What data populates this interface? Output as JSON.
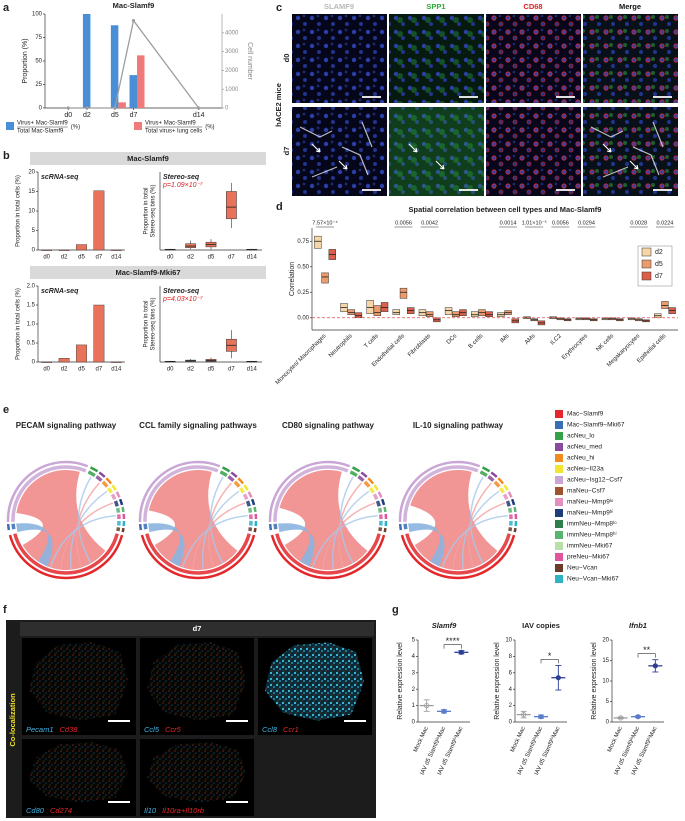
{
  "panel_labels": [
    "a",
    "b",
    "c",
    "d",
    "e",
    "f",
    "g"
  ],
  "panel_b": {
    "headers": [
      "Mac-Slamf9",
      "Mac-Slamf9-Mki67"
    ]
  },
  "panel_c": {
    "columns": [
      "SLAMF9",
      "SPP1",
      "CD68",
      "Merge"
    ],
    "column_colors": [
      "#b8b8b8",
      "#2fa83a",
      "#e02020",
      "#111111"
    ],
    "rows": [
      "d0",
      "d7"
    ],
    "group": "hACE2 mice"
  },
  "panel_e": {
    "titles": [
      "PECAM  signaling pathway",
      "CCL family signaling pathways",
      "CD80 signaling pathway",
      "IL-10 signaling pathway"
    ],
    "legend": [
      {
        "name": "Mac−Slamf9",
        "color": "#e3272a"
      },
      {
        "name": "Mac−Slamf9−Mki67",
        "color": "#3a6db5"
      },
      {
        "name": "acNeu_lo",
        "color": "#35a047"
      },
      {
        "name": "acNeu_med",
        "color": "#8a4a9e"
      },
      {
        "name": "acNeu_hi",
        "color": "#f28a1e"
      },
      {
        "name": "acNeu−Il23a",
        "color": "#f3e630"
      },
      {
        "name": "acNeu−Isg12−Csf7",
        "color": "#c9a6d6"
      },
      {
        "name": "maNeu−Csf7",
        "color": "#a0522d"
      },
      {
        "name": "maNeu−Mmp9ˡᵒ",
        "color": "#e48fc0"
      },
      {
        "name": "maNeu−Mmp9ʰⁱ",
        "color": "#1f3d7a"
      },
      {
        "name": "immNeu−Mmp8ˡᵒ",
        "color": "#2e7d4f"
      },
      {
        "name": "immNeu−Mmp8ʰⁱ",
        "color": "#5ab36e"
      },
      {
        "name": "immNeu−Mki67",
        "color": "#b7dfa8"
      },
      {
        "name": "preNeu−Mki67",
        "color": "#e0559b"
      },
      {
        "name": "Neu−Vcan",
        "color": "#6a3d2a"
      },
      {
        "name": "Neu−Vcan−Mki67",
        "color": "#2bb3c8"
      }
    ]
  },
  "panel_f": {
    "header": "d7",
    "side_label": "Co-localization",
    "gene_colors": [
      "#42b4e6",
      "#e8262a"
    ],
    "images": [
      {
        "genes": [
          "Pecam1",
          "Cd38"
        ]
      },
      {
        "genes": [
          "Ccl5",
          "Ccr5"
        ]
      },
      {
        "genes": [
          "Ccl8",
          "Ccr1"
        ]
      },
      {
        "genes": [
          "Cd80",
          "Cd274"
        ]
      },
      {
        "genes": [
          "Il10",
          "Il10ra+Il10rb"
        ]
      }
    ]
  },
  "chart_data": [
    {
      "type": "bar",
      "title": "Mac-Slamf9",
      "x": [
        0,
        2,
        5,
        7,
        14
      ],
      "xlim": [
        -2.5,
        16.5
      ],
      "xticks": [
        {
          "value": 0,
          "label": "d0"
        },
        {
          "value": 2,
          "label": "d2"
        },
        {
          "value": 5,
          "label": "d5"
        },
        {
          "value": 7,
          "label": "d7"
        },
        {
          "value": 14,
          "label": "d14"
        }
      ],
      "ylabel": "Proportion (%)",
      "ylim": [
        0,
        100
      ],
      "yticks": [
        0,
        25,
        50,
        75,
        100
      ],
      "y2label": "Cell number",
      "y2lim": [
        0,
        5000
      ],
      "y2ticks": [
        0,
        1000,
        2000,
        3000,
        4000
      ],
      "series": [
        {
          "name": "Virus+ Mac-Slamf9",
          "denominator": "Total Mac-Slamf9",
          "unit": "(%)",
          "color": "#4a8fd6",
          "values": [
            0,
            100,
            88,
            35,
            0
          ]
        },
        {
          "name": "Virus+ Mac-Slamf9",
          "denominator": "Total virus+ lung cells",
          "unit": "(%)",
          "color": "#f07a7a",
          "values": [
            0,
            0,
            6,
            56,
            0
          ]
        },
        {
          "type": "line",
          "axis": "y2",
          "color": "#9e9e9e",
          "values": [
            0,
            0,
            0,
            4650,
            0
          ]
        }
      ]
    },
    {
      "type": "bar",
      "title": "scRNA-seq",
      "categories": [
        "d0",
        "d2",
        "d5",
        "d7",
        "d14"
      ],
      "values": [
        0,
        0,
        1.4,
        15.2,
        0
      ],
      "color": "#e8735a",
      "ylabel": "Proportion in total cells (%)",
      "ylim": [
        0,
        20
      ],
      "yticks": [
        0,
        5,
        10,
        15,
        20
      ]
    },
    {
      "type": "box",
      "title": "Stereo-seq",
      "annotation": "p=1.09×10⁻⁷",
      "categories": [
        "d0",
        "d2",
        "d5",
        "d7",
        "d14"
      ],
      "color": "#e8735a",
      "ylabel": [
        "Proportion in total",
        "Stereo-seq bins (%)"
      ],
      "ylim": [
        0,
        1
      ],
      "q1": [
        0.002,
        0.03,
        0.04,
        0.4,
        0.003
      ],
      "median": [
        0.005,
        0.05,
        0.07,
        0.55,
        0.006
      ],
      "q3": [
        0.01,
        0.08,
        0.1,
        0.75,
        0.01
      ],
      "whisker_low": [
        0,
        0.01,
        0.01,
        0.28,
        0
      ],
      "whisker_high": [
        0.015,
        0.12,
        0.14,
        0.86,
        0.015
      ]
    },
    {
      "type": "bar",
      "title": "scRNA-seq",
      "categories": [
        "d0",
        "d2",
        "d5",
        "d7",
        "d14"
      ],
      "values": [
        0,
        0.1,
        0.45,
        1.5,
        0
      ],
      "color": "#e8735a",
      "ylabel": "Proportion in total cells (%)",
      "ylim": [
        0,
        2
      ],
      "yticks": [
        0,
        0.5,
        {
          "value": 1,
          "label": "1.0"
        },
        1.5,
        {
          "value": 2,
          "label": "2.0"
        }
      ]
    },
    {
      "type": "box",
      "title": "Stereo-seq",
      "annotation": "p=4.03×10⁻⁷",
      "categories": [
        "d0",
        "d2",
        "d5",
        "d7",
        "d14"
      ],
      "color": "#e8735a",
      "ylabel": [
        "Proportion in total",
        "Stereo-seq bins (%)"
      ],
      "ylim": [
        0,
        1
      ],
      "q1": [
        0.002,
        0.01,
        0.01,
        0.14,
        0.002
      ],
      "median": [
        0.005,
        0.015,
        0.02,
        0.22,
        0.005
      ],
      "q3": [
        0.01,
        0.025,
        0.035,
        0.3,
        0.01
      ],
      "whisker_low": [
        0,
        0,
        0,
        0.05,
        0
      ],
      "whisker_high": [
        0.015,
        0.04,
        0.06,
        0.42,
        0.015
      ]
    },
    {
      "type": "box",
      "title": "Spatial correlation between cell types and Mac-Slamf9",
      "ylabel": "Correlation",
      "categories": [
        "Monocytes/ Macrophages",
        "Neutrophils",
        "T cells",
        "Endothelial cells",
        "Fibroblasts",
        "DCs",
        "B cells",
        "IMs",
        "AMs",
        "ILC2",
        "Erythrocytes",
        "NK cells",
        "Megakaryocytes",
        "Epithelial cells"
      ],
      "pvalues": [
        "7.57×10⁻⁴",
        null,
        null,
        "0.0056",
        "0.0042",
        null,
        null,
        "0.0014",
        "1.01×10⁻⁵",
        "0.0056",
        "0.0294",
        null,
        "0.0028",
        "0.0224"
      ],
      "ylim": [
        -0.12,
        0.88
      ],
      "yticks": [
        {
          "value": 0,
          "label": "0.00"
        },
        0.25,
        {
          "value": 0.5,
          "label": "0.50"
        },
        0.75
      ],
      "series": [
        {
          "name": "d2",
          "color": "#f6d6a8",
          "q1": [
            0.68,
            0.06,
            0.04,
            0.03,
            0.02,
            0.03,
            0.01,
            0.01,
            -0.01,
            -0.01,
            -0.02,
            -0.02,
            -0.02,
            0.0
          ],
          "median": [
            0.75,
            0.1,
            0.1,
            0.05,
            0.05,
            0.07,
            0.03,
            0.03,
            0.0,
            0.0,
            -0.01,
            -0.01,
            -0.01,
            0.02
          ],
          "q3": [
            0.8,
            0.14,
            0.17,
            0.08,
            0.08,
            0.1,
            0.06,
            0.05,
            0.01,
            0.01,
            0.0,
            0.0,
            0.0,
            0.04
          ]
        },
        {
          "name": "d5",
          "color": "#ec9c6c",
          "q1": [
            0.34,
            0.03,
            0.02,
            0.19,
            0.01,
            0.01,
            0.02,
            0.03,
            -0.03,
            -0.02,
            -0.02,
            -0.02,
            -0.03,
            0.09
          ],
          "median": [
            0.4,
            0.05,
            0.05,
            0.25,
            0.03,
            0.03,
            0.05,
            0.05,
            -0.02,
            -0.01,
            -0.01,
            -0.01,
            -0.02,
            0.12
          ],
          "q3": [
            0.44,
            0.08,
            0.12,
            0.29,
            0.06,
            0.06,
            0.08,
            0.07,
            -0.01,
            0.0,
            0.0,
            0.0,
            -0.01,
            0.16
          ]
        },
        {
          "name": "d7",
          "color": "#dc5f4b",
          "q1": [
            0.57,
            0.0,
            0.06,
            0.04,
            -0.04,
            0.02,
            0.01,
            -0.05,
            -0.07,
            -0.03,
            -0.03,
            -0.03,
            -0.04,
            0.04
          ],
          "median": [
            0.62,
            0.02,
            0.1,
            0.07,
            -0.02,
            0.05,
            0.03,
            -0.03,
            -0.05,
            -0.02,
            -0.02,
            -0.02,
            -0.03,
            0.07
          ],
          "q3": [
            0.67,
            0.05,
            0.15,
            0.1,
            0.0,
            0.08,
            0.06,
            -0.01,
            -0.03,
            -0.01,
            -0.01,
            -0.01,
            -0.02,
            0.1
          ]
        }
      ]
    },
    {
      "type": "dot",
      "title": "Slamf9",
      "title_italic": true,
      "ylabel": "Relative expression level",
      "categories": [
        "Mock Mac",
        "IAV d5 Slamf9ˡᵒMac",
        "IAV d5 Slamf9ʰⁱMac"
      ],
      "colors": [
        "#9e9e9e",
        "#5b7cc9",
        "#2b3f95"
      ],
      "values": [
        1.0,
        0.65,
        4.25
      ],
      "errors": [
        0.35,
        0.1,
        0.1
      ],
      "significance": "****",
      "ylim": [
        0,
        5
      ],
      "yticks": [
        0,
        1,
        2,
        3,
        4,
        5
      ]
    },
    {
      "type": "dot",
      "title": "IAV copies",
      "title_italic": false,
      "ylabel": "Relative expression level",
      "categories": [
        "Mock Mac",
        "IAV d5 Slamf9ˡᵒMac",
        "IAV d5 Slamf9ʰⁱMac"
      ],
      "colors": [
        "#9e9e9e",
        "#5b7cc9",
        "#2b3f95"
      ],
      "values": [
        0.9,
        0.65,
        5.4
      ],
      "errors": [
        0.4,
        0.2,
        1.5
      ],
      "significance": "*",
      "ylim": [
        0,
        10
      ],
      "yticks": [
        0,
        2,
        4,
        6,
        8,
        10
      ]
    },
    {
      "type": "dot",
      "title": "Ifnb1",
      "title_italic": true,
      "ylabel": "Relative expression level",
      "categories": [
        "Mock Mac",
        "IAV d5 Slamf9ˡᵒMac",
        "IAV d5 Slamf9ʰⁱMac"
      ],
      "colors": [
        "#9e9e9e",
        "#5b7cc9",
        "#2b3f95"
      ],
      "values": [
        1.0,
        1.3,
        13.7
      ],
      "errors": [
        0.2,
        0.2,
        1.5
      ],
      "significance": "**",
      "ylim": [
        0,
        20
      ],
      "yticks": [
        0,
        5,
        10,
        15,
        20
      ]
    }
  ]
}
